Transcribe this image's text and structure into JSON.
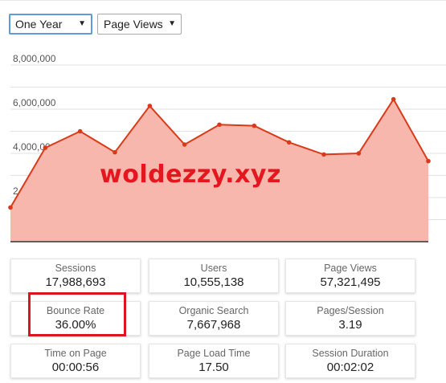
{
  "filters": {
    "range": "One Year",
    "metric": "Page Views"
  },
  "watermark": "woldezzy.xyz",
  "chart_data": {
    "type": "area",
    "series": [
      {
        "values": [
          1550000,
          4250000,
          5000000,
          4050000,
          6150000,
          4400000,
          5300000,
          5250000,
          4500000,
          3950000,
          4000000,
          6450000,
          3650000
        ]
      }
    ],
    "ylim": [
      0,
      8500000
    ],
    "y_ticks": [
      "8,000,000",
      "6,000,000",
      "4,000,000",
      "2,000,000"
    ],
    "y_tick_values": [
      8000000,
      6000000,
      4000000,
      2000000
    ],
    "grid": true,
    "line_color": "#d93a19",
    "fill_color": "#f7b7ad"
  },
  "stats": [
    {
      "label": "Sessions",
      "value": "17,988,693"
    },
    {
      "label": "Users",
      "value": "10,555,138"
    },
    {
      "label": "Page Views",
      "value": "57,321,495"
    },
    {
      "label": "Bounce Rate",
      "value": "36.00%"
    },
    {
      "label": "Organic Search",
      "value": "7,667,968"
    },
    {
      "label": "Pages/Session",
      "value": "3.19"
    },
    {
      "label": "Time on Page",
      "value": "00:00:56"
    },
    {
      "label": "Page Load Time",
      "value": "17.50"
    },
    {
      "label": "Session Duration",
      "value": "00:02:02"
    }
  ]
}
